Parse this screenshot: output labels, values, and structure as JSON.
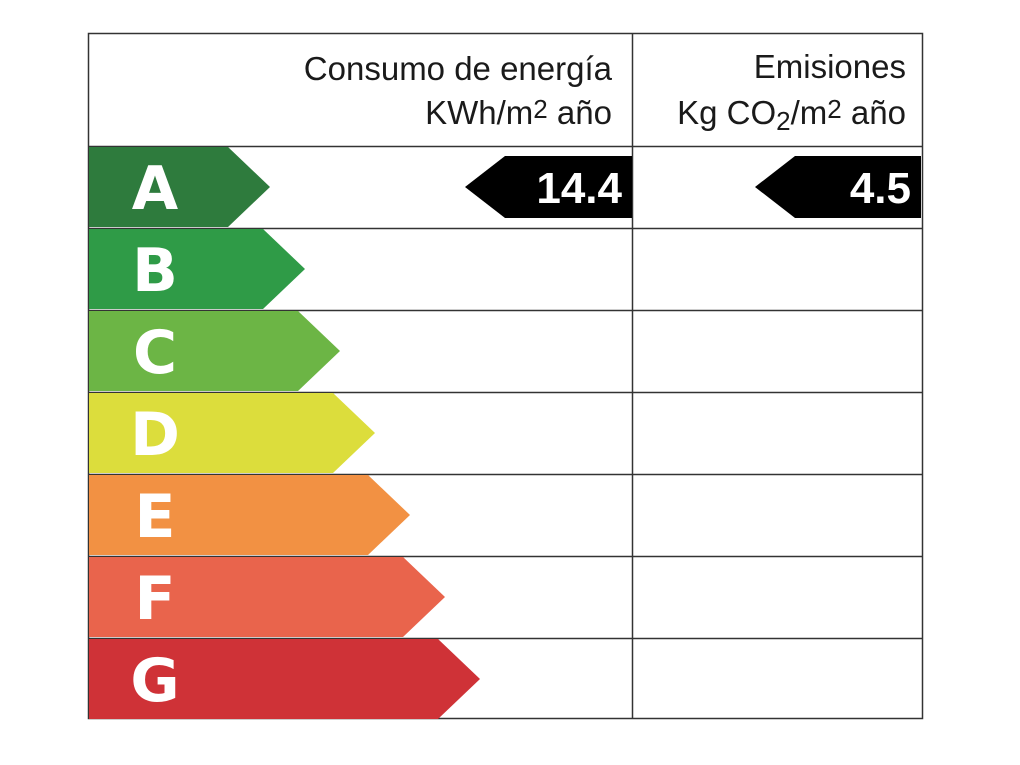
{
  "header": {
    "energy": {
      "title": "Consumo de energía",
      "unit": [
        {
          "text": "KWh/m"
        },
        {
          "text": "2",
          "shift": "super"
        },
        {
          "text": " año"
        }
      ]
    },
    "emissions": {
      "title": "Emisiones",
      "unit": [
        {
          "text": "Kg CO"
        },
        {
          "text": "2",
          "shift": "sub"
        },
        {
          "text": "/m"
        },
        {
          "text": "2",
          "shift": "super"
        },
        {
          "text": " año"
        }
      ]
    }
  },
  "rows": [
    {
      "letter": "A",
      "color": "#2e7b3d",
      "energy": 14.4,
      "emissions": 4.5
    },
    {
      "letter": "B",
      "color": "#2f9b47"
    },
    {
      "letter": "C",
      "color": "#6cb545"
    },
    {
      "letter": "D",
      "color": "#dcdd3c"
    },
    {
      "letter": "E",
      "color": "#f29143"
    },
    {
      "letter": "F",
      "color": "#e9644c"
    },
    {
      "letter": "G",
      "color": "#cf3237"
    }
  ]
}
